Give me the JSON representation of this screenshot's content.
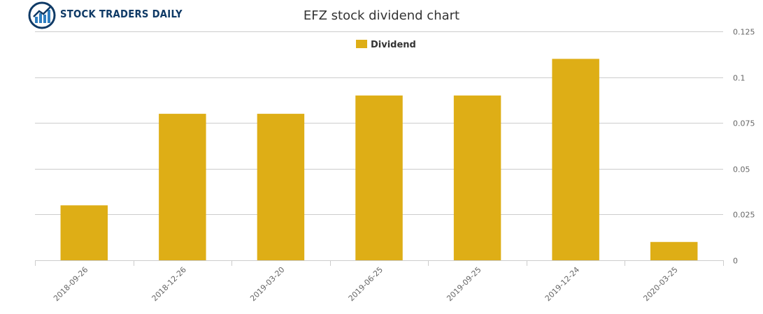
{
  "brand": {
    "name": "STOCK TRADERS DAILY"
  },
  "chart_data": {
    "type": "bar",
    "title": "EFZ stock dividend chart",
    "categories": [
      "2018-09-26",
      "2018-12-26",
      "2019-03-20",
      "2019-06-25",
      "2019-09-25",
      "2019-12-24",
      "2020-03-25"
    ],
    "series": [
      {
        "name": "Dividend",
        "values": [
          0.03,
          0.08,
          0.08,
          0.09,
          0.09,
          0.11,
          0.01
        ]
      }
    ],
    "ylim": [
      0,
      0.125
    ],
    "yticks": [
      "0",
      "0.025",
      "0.05",
      "0.075",
      "0.1",
      "0.125"
    ],
    "ytick_values": [
      0,
      0.025,
      0.05,
      0.075,
      0.1,
      0.125
    ],
    "y_axis_side": "right",
    "grid": true,
    "legend_position": "top-center",
    "colors": {
      "bar": "#deae16",
      "grid": "#cccccc",
      "text": "#333333",
      "brand": "#0f3a66"
    }
  }
}
